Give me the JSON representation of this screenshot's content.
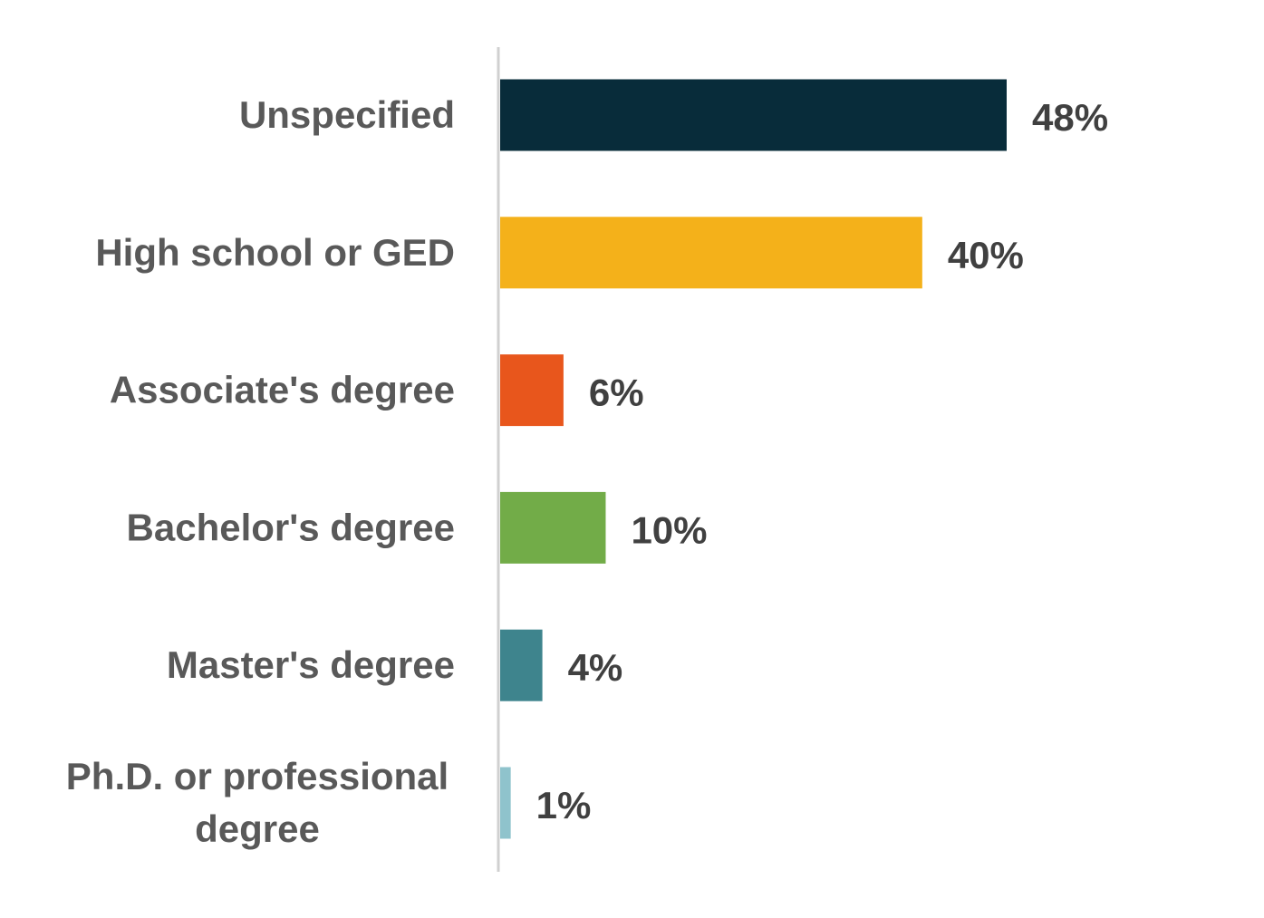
{
  "chart_data": {
    "type": "bar",
    "orientation": "horizontal",
    "categories": [
      "Unspecified",
      "High school or GED",
      "Associate's degree",
      "Bachelor's degree",
      "Master's degree",
      "Ph.D. or professional degree"
    ],
    "category_lines": [
      [
        "Unspecified"
      ],
      [
        "High school or GED"
      ],
      [
        "Associate's degree"
      ],
      [
        "Bachelor's degree"
      ],
      [
        "Master's degree"
      ],
      [
        "Ph.D. or professional",
        "degree"
      ]
    ],
    "values": [
      48,
      40,
      6,
      10,
      4,
      1
    ],
    "data_labels": [
      "48%",
      "40%",
      "6%",
      "10%",
      "4%",
      "1%"
    ],
    "colors": [
      "#082c3a",
      "#f4b11a",
      "#e8561c",
      "#72ac48",
      "#3e848d",
      "#8fc3cc"
    ],
    "value_unit": "%",
    "title": "",
    "xlabel": "",
    "ylabel": "",
    "xlim": [
      0,
      48
    ],
    "grid": false,
    "legend": "none"
  }
}
